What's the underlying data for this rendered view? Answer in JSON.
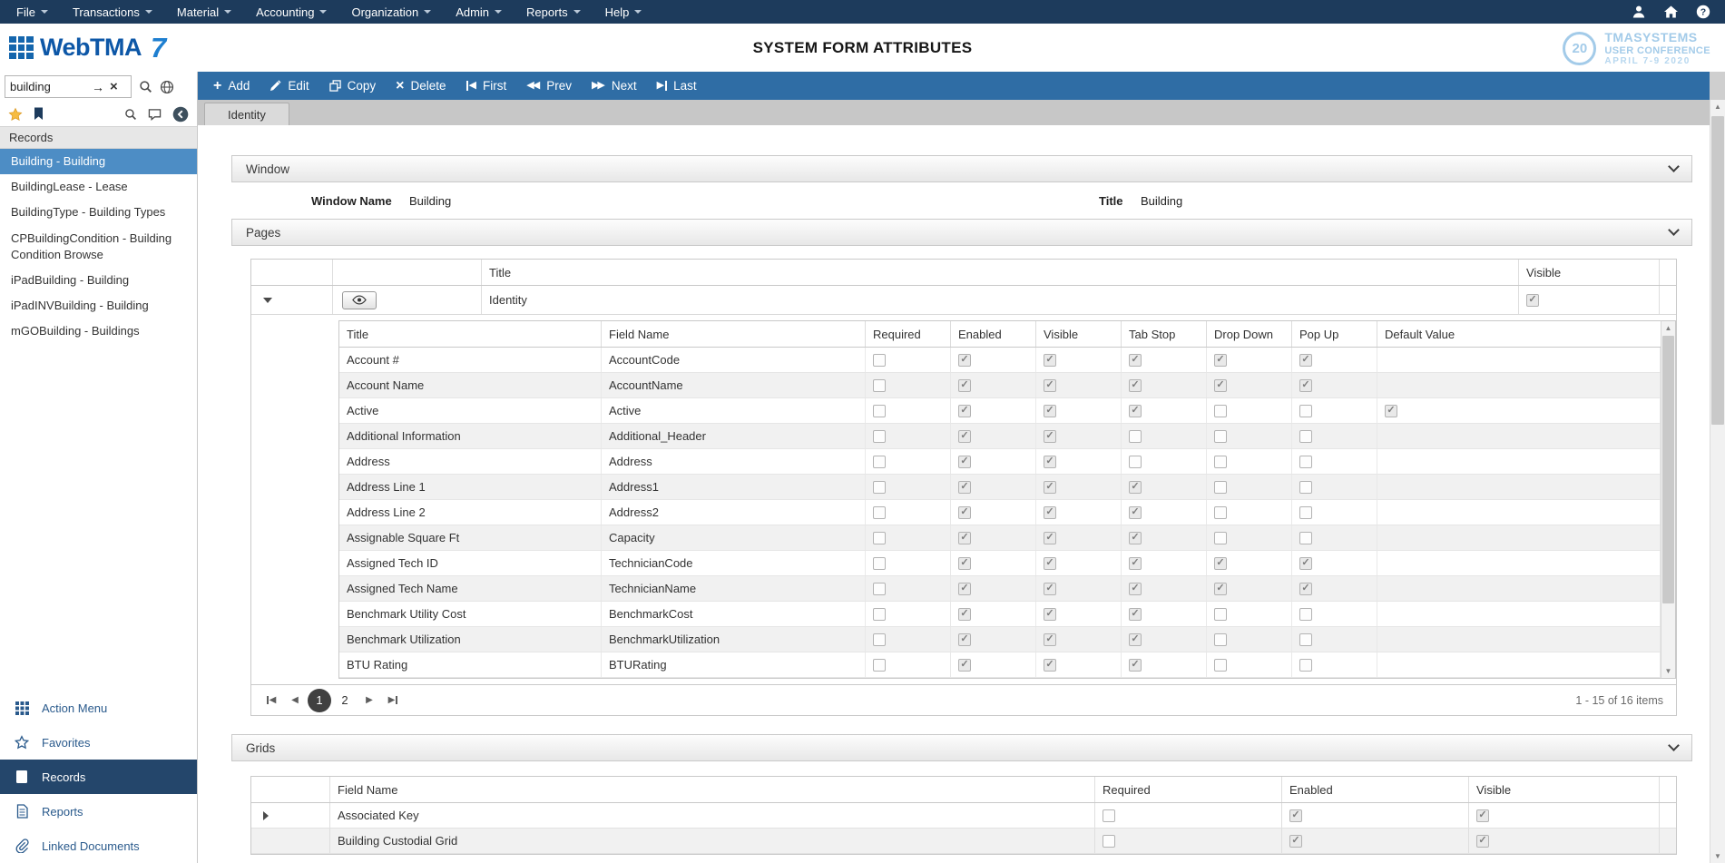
{
  "menubar": {
    "items": [
      "File",
      "Transactions",
      "Material",
      "Accounting",
      "Organization",
      "Admin",
      "Reports",
      "Help"
    ],
    "right_icons": [
      "user-icon",
      "home-icon",
      "help-icon"
    ]
  },
  "header": {
    "logo_text": "WebTMA",
    "logo_version": "7",
    "title": "SYSTEM FORM ATTRIBUTES",
    "conference": {
      "badge": "20",
      "brand": "TMASYSTEMS",
      "line2": "USER CONFERENCE",
      "line3": "APRIL 7-9 2020"
    }
  },
  "sidebar": {
    "search": {
      "value": "building",
      "icons": [
        "go-arrow-icon",
        "clear-icon",
        "search-icon",
        "globe-icon"
      ]
    },
    "quick_icons": [
      "star-icon",
      "bookmark-icon",
      "search-icon",
      "comment-icon",
      "back-circle-icon"
    ],
    "list_header": "Records",
    "items": [
      {
        "label": "Building - Building",
        "selected": true
      },
      {
        "label": "BuildingLease - Lease",
        "selected": false
      },
      {
        "label": "BuildingType - Building Types",
        "selected": false
      },
      {
        "label": "CPBuildingCondition - Building Condition Browse",
        "selected": false
      },
      {
        "label": "iPadBuilding - Building",
        "selected": false
      },
      {
        "label": "iPadINVBuilding - Building",
        "selected": false
      },
      {
        "label": "mGOBuilding - Buildings",
        "selected": false
      }
    ],
    "bottom_nav": [
      {
        "label": "Action Menu",
        "icon": "grid",
        "selected": false
      },
      {
        "label": "Favorites",
        "icon": "star",
        "selected": false
      },
      {
        "label": "Records",
        "icon": "records",
        "selected": true
      },
      {
        "label": "Reports",
        "icon": "report",
        "selected": false
      },
      {
        "label": "Linked Documents",
        "icon": "paperclip",
        "selected": false
      }
    ]
  },
  "toolbar": {
    "buttons": [
      {
        "label": "Add",
        "icon": "plus"
      },
      {
        "label": "Edit",
        "icon": "pencil"
      },
      {
        "label": "Copy",
        "icon": "copy"
      },
      {
        "label": "Delete",
        "icon": "delete"
      },
      {
        "label": "First",
        "icon": "first"
      },
      {
        "label": "Prev",
        "icon": "prev"
      },
      {
        "label": "Next",
        "icon": "next"
      },
      {
        "label": "Last",
        "icon": "last"
      }
    ]
  },
  "tabs": [
    {
      "label": "Identity",
      "active": true
    }
  ],
  "window_section": {
    "title": "Window",
    "fields": [
      {
        "label": "Window Name",
        "value": "Building"
      },
      {
        "label": "Title",
        "value": "Building"
      }
    ]
  },
  "pages_section": {
    "title": "Pages",
    "page_grid": {
      "columns": [
        "Title",
        "Visible"
      ],
      "rows": [
        {
          "title": "Identity",
          "visible": true,
          "expanded": true
        }
      ]
    },
    "field_grid": {
      "columns": [
        "Title",
        "Field Name",
        "Required",
        "Enabled",
        "Visible",
        "Tab Stop",
        "Drop Down",
        "Pop Up",
        "Default Value"
      ],
      "rows": [
        {
          "title": "Account #",
          "field_name": "AccountCode",
          "required": false,
          "enabled": true,
          "visible": true,
          "tab_stop": true,
          "drop_down": true,
          "pop_up": true,
          "default_value": null
        },
        {
          "title": "Account Name",
          "field_name": "AccountName",
          "required": false,
          "enabled": true,
          "visible": true,
          "tab_stop": true,
          "drop_down": true,
          "pop_up": true,
          "default_value": null
        },
        {
          "title": "Active",
          "field_name": "Active",
          "required": false,
          "enabled": true,
          "visible": true,
          "tab_stop": true,
          "drop_down": false,
          "pop_up": false,
          "default_value": true
        },
        {
          "title": "Additional Information",
          "field_name": "Additional_Header",
          "required": false,
          "enabled": true,
          "visible": true,
          "tab_stop": false,
          "drop_down": false,
          "pop_up": false,
          "default_value": null
        },
        {
          "title": "Address",
          "field_name": "Address",
          "required": false,
          "enabled": true,
          "visible": true,
          "tab_stop": false,
          "drop_down": false,
          "pop_up": false,
          "default_value": null
        },
        {
          "title": "Address Line 1",
          "field_name": "Address1",
          "required": false,
          "enabled": true,
          "visible": true,
          "tab_stop": true,
          "drop_down": false,
          "pop_up": false,
          "default_value": null
        },
        {
          "title": "Address Line 2",
          "field_name": "Address2",
          "required": false,
          "enabled": true,
          "visible": true,
          "tab_stop": true,
          "drop_down": false,
          "pop_up": false,
          "default_value": null
        },
        {
          "title": "Assignable Square Ft",
          "field_name": "Capacity",
          "required": false,
          "enabled": true,
          "visible": true,
          "tab_stop": true,
          "drop_down": false,
          "pop_up": false,
          "default_value": null
        },
        {
          "title": "Assigned Tech ID",
          "field_name": "TechnicianCode",
          "required": false,
          "enabled": true,
          "visible": true,
          "tab_stop": true,
          "drop_down": true,
          "pop_up": true,
          "default_value": null
        },
        {
          "title": "Assigned Tech Name",
          "field_name": "TechnicianName",
          "required": false,
          "enabled": true,
          "visible": true,
          "tab_stop": true,
          "drop_down": true,
          "pop_up": true,
          "default_value": null
        },
        {
          "title": "Benchmark Utility Cost",
          "field_name": "BenchmarkCost",
          "required": false,
          "enabled": true,
          "visible": true,
          "tab_stop": true,
          "drop_down": false,
          "pop_up": false,
          "default_value": null
        },
        {
          "title": "Benchmark Utilization",
          "field_name": "BenchmarkUtilization",
          "required": false,
          "enabled": true,
          "visible": true,
          "tab_stop": true,
          "drop_down": false,
          "pop_up": false,
          "default_value": null
        },
        {
          "title": "BTU Rating",
          "field_name": "BTURating",
          "required": false,
          "enabled": true,
          "visible": true,
          "tab_stop": true,
          "drop_down": false,
          "pop_up": false,
          "default_value": null
        }
      ]
    },
    "pager": {
      "pages": [
        "1",
        "2"
      ],
      "current": "1",
      "status": "1 - 15 of 16 items",
      "nav_icons": [
        "first-page-icon",
        "prev-page-icon",
        "next-page-icon",
        "last-page-icon"
      ]
    }
  },
  "grids_section": {
    "title": "Grids",
    "grid": {
      "columns": [
        "Field Name",
        "Required",
        "Enabled",
        "Visible"
      ],
      "rows": [
        {
          "field_name": "Associated Key",
          "expandable": true,
          "required": false,
          "enabled": true,
          "visible": true
        },
        {
          "field_name": "Building Custodial Grid",
          "expandable": false,
          "required": false,
          "enabled": true,
          "visible": true
        }
      ]
    }
  }
}
